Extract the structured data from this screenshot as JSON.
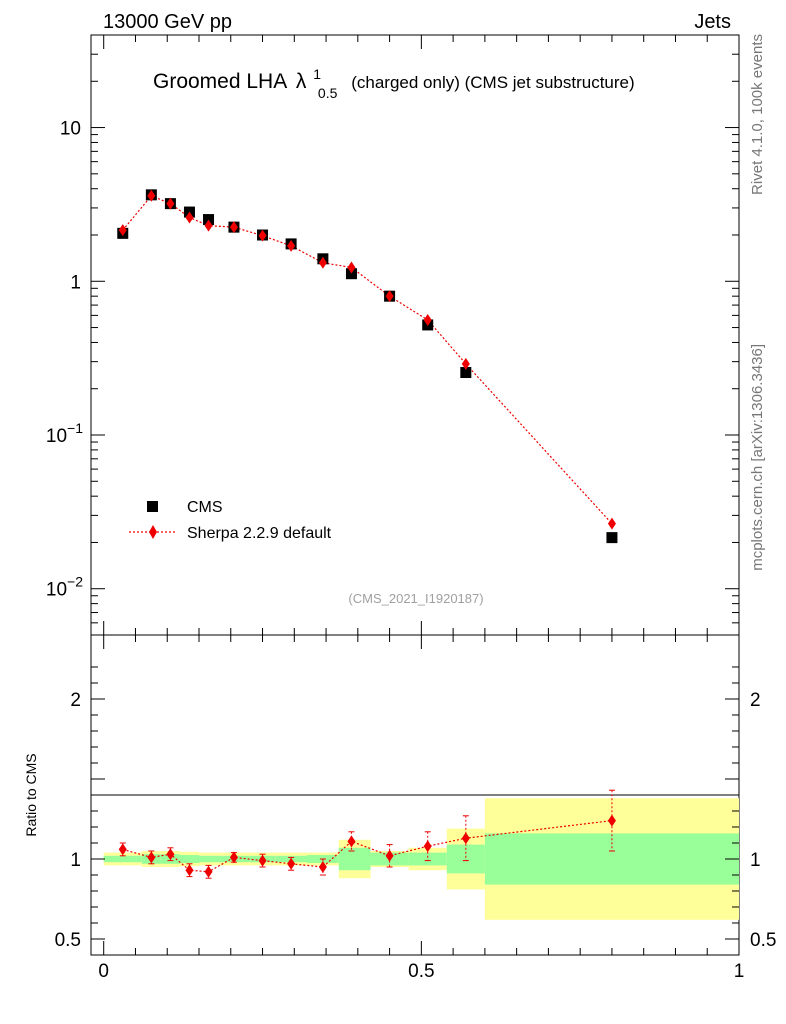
{
  "header": {
    "left": "13000 GeV pp",
    "right": "Jets"
  },
  "side_labels": {
    "rivet": "Rivet 4.1.0,  100k events",
    "mcplots": "mcplots.cern.ch [arXiv:1306.3436]"
  },
  "chart_data": {
    "type": "scatter",
    "title_main": "Groomed LHA",
    "title_symbol": "λ",
    "title_sup": "1",
    "title_sub": "0.5",
    "title_rest": "(charged only) (CMS jet substructure)",
    "watermark": "(CMS_2021_I1920187)",
    "legend": {
      "data_label": "CMS",
      "mc_label": "Sherpa 2.2.9 default",
      "position": "bottom-left"
    },
    "main_ylim": [
      0.005,
      40
    ],
    "main_yticks": [
      {
        "value": 10,
        "label": "10"
      },
      {
        "value": 1,
        "label": "1"
      },
      {
        "value": 0.1,
        "label": "10",
        "exp": "−1"
      },
      {
        "value": 0.01,
        "label": "10",
        "exp": "−2"
      }
    ],
    "x": [
      0.03,
      0.075,
      0.105,
      0.135,
      0.165,
      0.205,
      0.25,
      0.295,
      0.345,
      0.39,
      0.45,
      0.51,
      0.57,
      0.8
    ],
    "bin_edges": [
      0,
      0.06,
      0.09,
      0.12,
      0.15,
      0.18,
      0.23,
      0.27,
      0.32,
      0.37,
      0.42,
      0.48,
      0.54,
      0.6,
      1.0
    ],
    "cms_values": [
      2.05,
      3.65,
      3.2,
      2.82,
      2.52,
      2.25,
      2.0,
      1.75,
      1.4,
      1.12,
      0.8,
      0.52,
      0.255,
      0.0215
    ],
    "sherpa_values": [
      2.15,
      3.6,
      3.2,
      2.6,
      2.3,
      2.25,
      1.98,
      1.7,
      1.32,
      1.23,
      0.8,
      0.56,
      0.29,
      0.0265
    ],
    "ratio": {
      "ylabel": "Ratio to CMS",
      "ylim": [
        0.4,
        2.4
      ],
      "yticks": [
        {
          "value": 2,
          "label": "2"
        },
        {
          "value": 1,
          "label": "1"
        },
        {
          "value": 0.5,
          "label": "0.5"
        }
      ],
      "values": [
        1.06,
        1.01,
        1.03,
        0.93,
        0.92,
        1.01,
        0.99,
        0.97,
        0.95,
        1.11,
        1.02,
        1.08,
        1.13,
        1.24
      ],
      "errors": [
        0.04,
        0.04,
        0.04,
        0.04,
        0.04,
        0.03,
        0.04,
        0.04,
        0.05,
        0.06,
        0.07,
        0.09,
        0.14,
        0.19
      ],
      "band_stat": [
        0.02,
        0.03,
        0.03,
        0.025,
        0.02,
        0.02,
        0.02,
        0.02,
        0.025,
        0.07,
        0.04,
        0.04,
        0.09,
        0.16
      ],
      "band_total": [
        0.04,
        0.05,
        0.05,
        0.045,
        0.04,
        0.04,
        0.04,
        0.04,
        0.04,
        0.12,
        0.05,
        0.07,
        0.19,
        0.38
      ]
    },
    "xlim": [
      -0.02,
      1.0
    ],
    "xticks": [
      {
        "value": 0,
        "label": "0"
      },
      {
        "value": 0.5,
        "label": "0.5"
      },
      {
        "value": 1,
        "label": "1"
      }
    ],
    "colors": {
      "data": "#000000",
      "mc": "#ee0000",
      "band_total": "#ffff99",
      "band_stat": "#99ff99"
    }
  }
}
